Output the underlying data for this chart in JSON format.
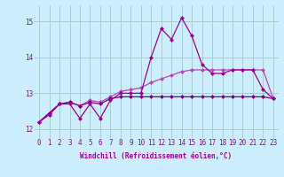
{
  "xlabel": "Windchill (Refroidissement éolien,°C)",
  "x_values": [
    0,
    1,
    2,
    3,
    4,
    5,
    6,
    7,
    8,
    9,
    10,
    11,
    12,
    13,
    14,
    15,
    16,
    17,
    18,
    19,
    20,
    21,
    22,
    23
  ],
  "line1": [
    12.2,
    12.4,
    12.7,
    12.7,
    12.3,
    12.7,
    12.3,
    12.8,
    13.0,
    13.0,
    13.0,
    14.0,
    14.8,
    14.5,
    15.1,
    14.6,
    13.8,
    13.55,
    13.55,
    13.65,
    13.65,
    13.65,
    13.1,
    12.85
  ],
  "line2": [
    12.2,
    12.45,
    12.7,
    12.75,
    12.65,
    12.8,
    12.75,
    12.9,
    13.05,
    13.1,
    13.15,
    13.3,
    13.4,
    13.5,
    13.6,
    13.65,
    13.65,
    13.65,
    13.65,
    13.65,
    13.65,
    13.65,
    13.65,
    12.85
  ],
  "line3": [
    12.2,
    12.45,
    12.7,
    12.75,
    12.65,
    12.75,
    12.7,
    12.85,
    12.9,
    12.9,
    12.9,
    12.9,
    12.9,
    12.9,
    12.9,
    12.9,
    12.9,
    12.9,
    12.9,
    12.9,
    12.9,
    12.9,
    12.9,
    12.85
  ],
  "line_color1": "#990099",
  "line_color2": "#bb44bb",
  "line_color3": "#770077",
  "bg_color": "#cceeff",
  "grid_color": "#aacccc",
  "ylabel_vals": [
    12,
    13,
    14,
    15
  ],
  "ylim": [
    11.75,
    15.45
  ],
  "xlim": [
    -0.5,
    23.5
  ],
  "marker": "D",
  "markersize": 2.5,
  "tick_fontsize": 5.5,
  "xlabel_fontsize": 5.5
}
